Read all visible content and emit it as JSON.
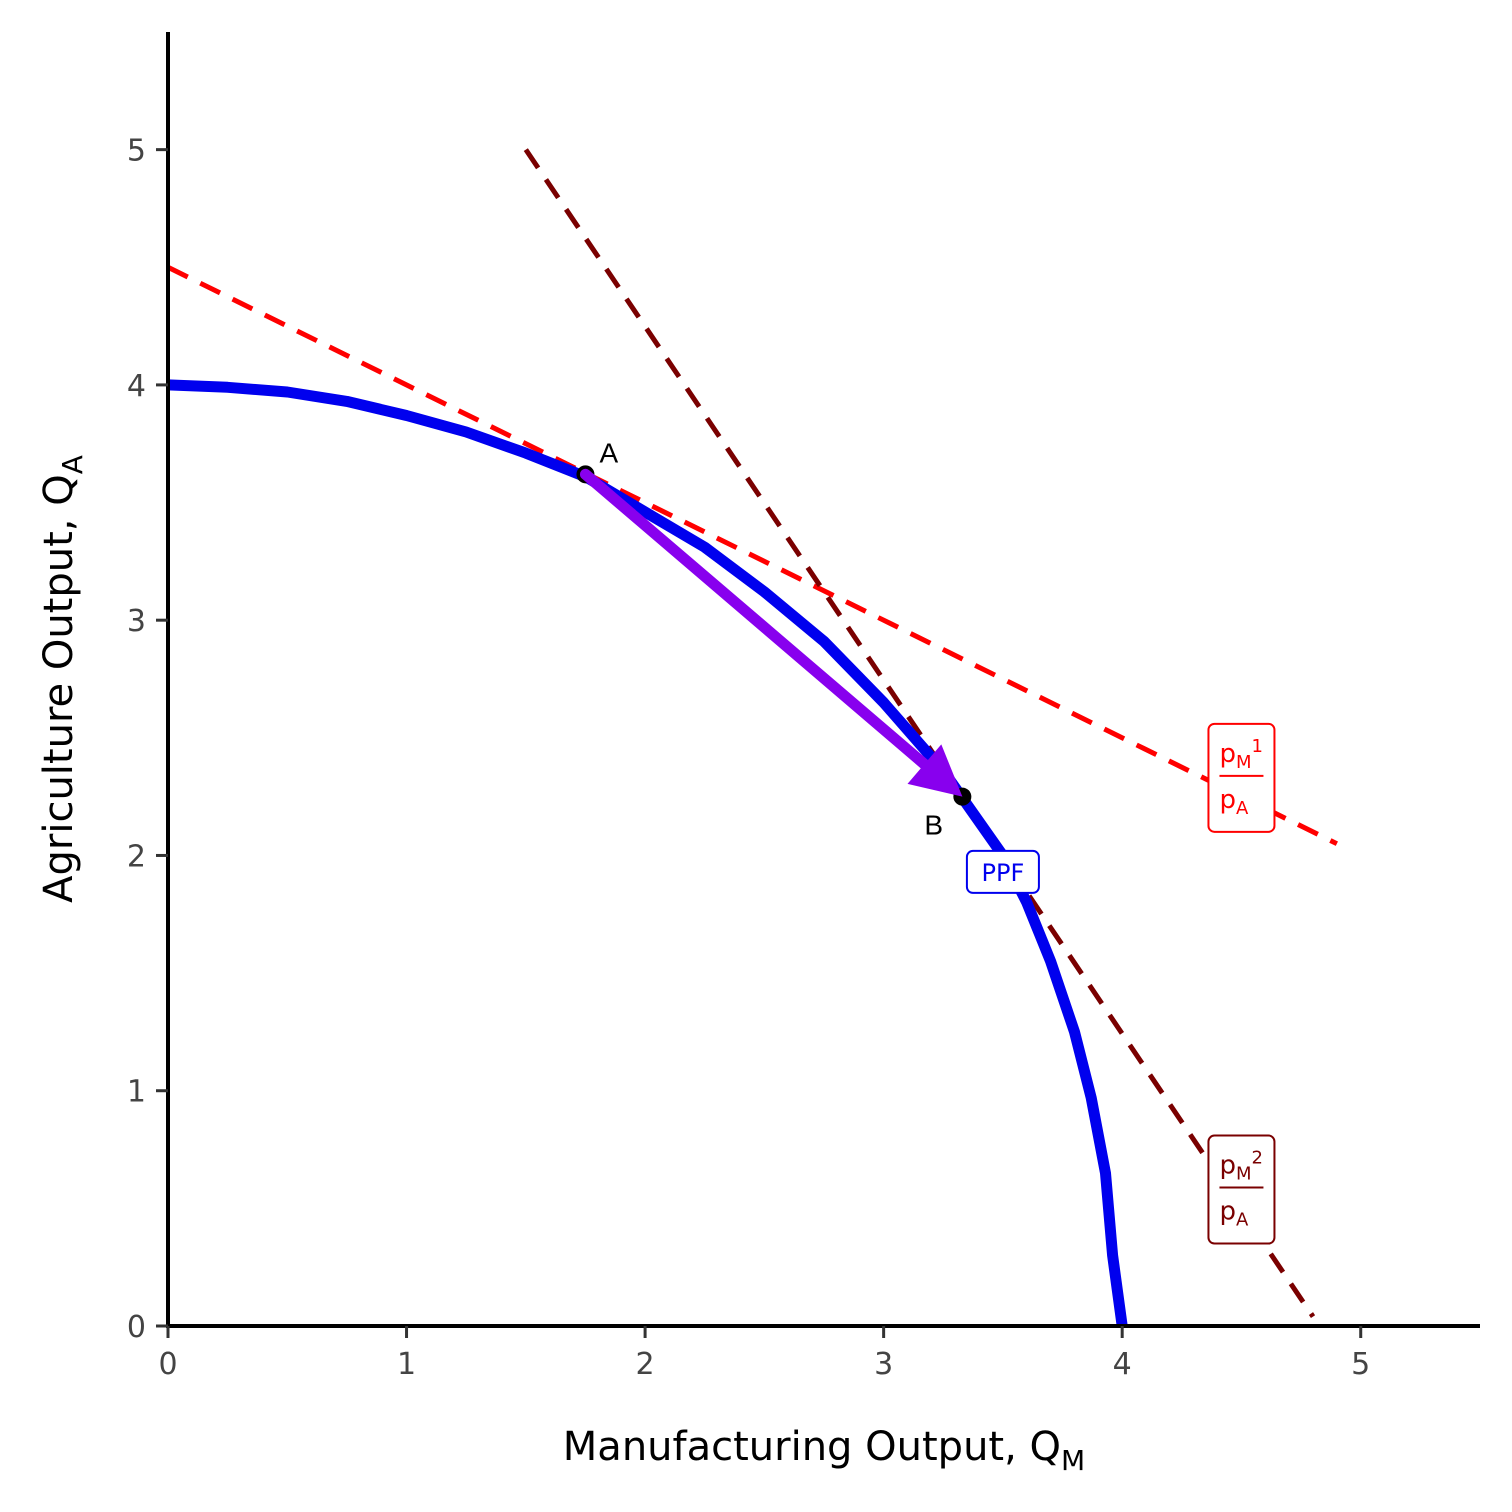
{
  "chart_data": {
    "type": "line",
    "xlabel": {
      "main": "Manufacturing Output, Q",
      "sub": "M"
    },
    "ylabel": {
      "main": "Agriculture Output, Q",
      "sub": "A"
    },
    "xlim": [
      0,
      5.5
    ],
    "ylim": [
      0,
      5.5
    ],
    "x_ticks": [
      0,
      1,
      2,
      3,
      4,
      5
    ],
    "y_ticks": [
      0,
      1,
      2,
      3,
      4,
      5
    ],
    "grid": false,
    "ppf": {
      "label": "PPF",
      "color": "#0000ee",
      "label_at": [
        3.5,
        1.93
      ],
      "points": [
        [
          0,
          4.0
        ],
        [
          0.25,
          3.99
        ],
        [
          0.5,
          3.97
        ],
        [
          0.75,
          3.93
        ],
        [
          1.0,
          3.87
        ],
        [
          1.25,
          3.8
        ],
        [
          1.5,
          3.71
        ],
        [
          1.75,
          3.61
        ],
        [
          2.0,
          3.46
        ],
        [
          2.25,
          3.31
        ],
        [
          2.5,
          3.12
        ],
        [
          2.75,
          2.91
        ],
        [
          3.0,
          2.65
        ],
        [
          3.25,
          2.36
        ],
        [
          3.5,
          2.0
        ],
        [
          3.6,
          1.8
        ],
        [
          3.7,
          1.55
        ],
        [
          3.8,
          1.25
        ],
        [
          3.87,
          0.97
        ],
        [
          3.93,
          0.65
        ],
        [
          3.96,
          0.3
        ],
        [
          4.0,
          0.0
        ]
      ]
    },
    "price_lines": [
      {
        "color": "#ff0000",
        "x": [
          0,
          4.9
        ],
        "y": [
          4.5,
          2.05
        ],
        "label": {
          "num": "p",
          "num_sub": "M",
          "num_sup": "1",
          "den": "p",
          "den_sub": "A",
          "at": [
            4.5,
            2.33
          ]
        }
      },
      {
        "color": "#7a0000",
        "x": [
          1.5,
          4.8
        ],
        "y": [
          5.0,
          0.04
        ],
        "label": {
          "num": "p",
          "num_sub": "M",
          "num_sup": "2",
          "den": "p",
          "den_sub": "A",
          "at": [
            4.5,
            0.58
          ]
        }
      }
    ],
    "points": [
      {
        "label": "A",
        "x": 1.75,
        "y": 3.62
      },
      {
        "label": "B",
        "x": 3.33,
        "y": 2.25
      }
    ],
    "arrow": {
      "from": [
        1.75,
        3.62
      ],
      "to": [
        3.33,
        2.25
      ],
      "color": "#8800ee"
    }
  }
}
